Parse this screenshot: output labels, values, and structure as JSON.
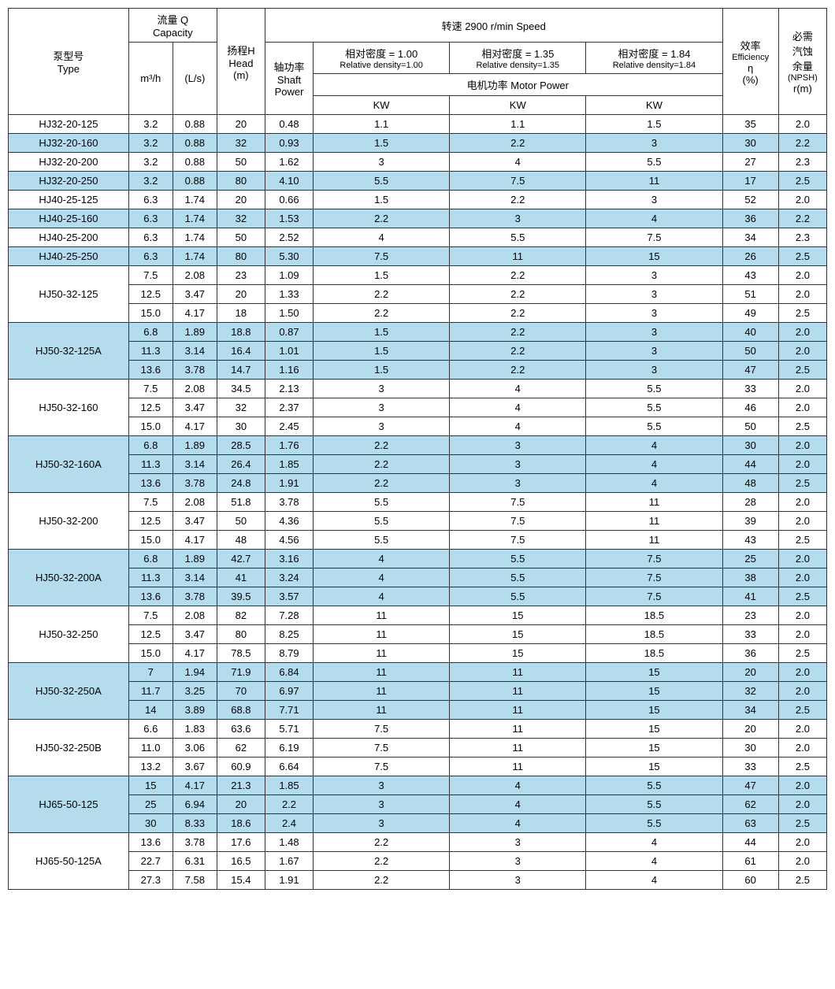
{
  "headers": {
    "type": "泵型号",
    "type_en": "Type",
    "capacity": "流量 Q",
    "capacity_en": "Capacity",
    "m3h": "m³/h",
    "ls": "(L/s)",
    "head": "扬程H",
    "head_en": "Head",
    "head_unit": "(m)",
    "speed": "转速  2900 r/min Speed",
    "shaft": "轴功率",
    "shaft_en": "Shaft",
    "shaft_en2": "Power",
    "d100": "相对密度 = 1.00",
    "d100_en": "Relative density=1.00",
    "d135": "相对密度 = 1.35",
    "d135_en": "Relative density=1.35",
    "d184": "相对密度 = 1.84",
    "d184_en": "Relative density=1.84",
    "motor": "电机功率   Motor Power",
    "kw": "KW",
    "eff": "效率",
    "eff_en": "Efficiency",
    "eff_sym": "η",
    "eff_unit": "(%)",
    "npsh": "必需",
    "npsh2": "汽蚀",
    "npsh3": "余量",
    "npsh_en": "(NPSH)",
    "npsh_unit": "r(m)"
  },
  "colors": {
    "alt_bg": "#b5dcec",
    "border": "#333333",
    "text": "#000000"
  },
  "groups": [
    {
      "type": "HJ32-20-125",
      "alt": false,
      "rows": [
        {
          "m3h": "3.2",
          "ls": "0.88",
          "head": "20",
          "shaft": "0.48",
          "kw1": "1.1",
          "kw2": "1.1",
          "kw3": "1.5",
          "eff": "35",
          "npsh": "2.0"
        }
      ]
    },
    {
      "type": "HJ32-20-160",
      "alt": true,
      "rows": [
        {
          "m3h": "3.2",
          "ls": "0.88",
          "head": "32",
          "shaft": "0.93",
          "kw1": "1.5",
          "kw2": "2.2",
          "kw3": "3",
          "eff": "30",
          "npsh": "2.2"
        }
      ]
    },
    {
      "type": "HJ32-20-200",
      "alt": false,
      "rows": [
        {
          "m3h": "3.2",
          "ls": "0.88",
          "head": "50",
          "shaft": "1.62",
          "kw1": "3",
          "kw2": "4",
          "kw3": "5.5",
          "eff": "27",
          "npsh": "2.3"
        }
      ]
    },
    {
      "type": "HJ32-20-250",
      "alt": true,
      "rows": [
        {
          "m3h": "3.2",
          "ls": "0.88",
          "head": "80",
          "shaft": "4.10",
          "kw1": "5.5",
          "kw2": "7.5",
          "kw3": "11",
          "eff": "17",
          "npsh": "2.5"
        }
      ]
    },
    {
      "type": "HJ40-25-125",
      "alt": false,
      "rows": [
        {
          "m3h": "6.3",
          "ls": "1.74",
          "head": "20",
          "shaft": "0.66",
          "kw1": "1.5",
          "kw2": "2.2",
          "kw3": "3",
          "eff": "52",
          "npsh": "2.0"
        }
      ]
    },
    {
      "type": "HJ40-25-160",
      "alt": true,
      "rows": [
        {
          "m3h": "6.3",
          "ls": "1.74",
          "head": "32",
          "shaft": "1.53",
          "kw1": "2.2",
          "kw2": "3",
          "kw3": "4",
          "eff": "36",
          "npsh": "2.2"
        }
      ]
    },
    {
      "type": "HJ40-25-200",
      "alt": false,
      "rows": [
        {
          "m3h": "6.3",
          "ls": "1.74",
          "head": "50",
          "shaft": "2.52",
          "kw1": "4",
          "kw2": "5.5",
          "kw3": "7.5",
          "eff": "34",
          "npsh": "2.3"
        }
      ]
    },
    {
      "type": "HJ40-25-250",
      "alt": true,
      "rows": [
        {
          "m3h": "6.3",
          "ls": "1.74",
          "head": "80",
          "shaft": "5.30",
          "kw1": "7.5",
          "kw2": "11",
          "kw3": "15",
          "eff": "26",
          "npsh": "2.5"
        }
      ]
    },
    {
      "type": "HJ50-32-125",
      "alt": false,
      "rows": [
        {
          "m3h": "7.5",
          "ls": "2.08",
          "head": "23",
          "shaft": "1.09",
          "kw1": "1.5",
          "kw2": "2.2",
          "kw3": "3",
          "eff": "43",
          "npsh": "2.0"
        },
        {
          "m3h": "12.5",
          "ls": "3.47",
          "head": "20",
          "shaft": "1.33",
          "kw1": "2.2",
          "kw2": "2.2",
          "kw3": "3",
          "eff": "51",
          "npsh": "2.0"
        },
        {
          "m3h": "15.0",
          "ls": "4.17",
          "head": "18",
          "shaft": "1.50",
          "kw1": "2.2",
          "kw2": "2.2",
          "kw3": "3",
          "eff": "49",
          "npsh": "2.5"
        }
      ]
    },
    {
      "type": "HJ50-32-125A",
      "alt": true,
      "rows": [
        {
          "m3h": "6.8",
          "ls": "1.89",
          "head": "18.8",
          "shaft": "0.87",
          "kw1": "1.5",
          "kw2": "2.2",
          "kw3": "3",
          "eff": "40",
          "npsh": "2.0"
        },
        {
          "m3h": "11.3",
          "ls": "3.14",
          "head": "16.4",
          "shaft": "1.01",
          "kw1": "1.5",
          "kw2": "2.2",
          "kw3": "3",
          "eff": "50",
          "npsh": "2.0"
        },
        {
          "m3h": "13.6",
          "ls": "3.78",
          "head": "14.7",
          "shaft": "1.16",
          "kw1": "1.5",
          "kw2": "2.2",
          "kw3": "3",
          "eff": "47",
          "npsh": "2.5"
        }
      ]
    },
    {
      "type": "HJ50-32-160",
      "alt": false,
      "rows": [
        {
          "m3h": "7.5",
          "ls": "2.08",
          "head": "34.5",
          "shaft": "2.13",
          "kw1": "3",
          "kw2": "4",
          "kw3": "5.5",
          "eff": "33",
          "npsh": "2.0"
        },
        {
          "m3h": "12.5",
          "ls": "3.47",
          "head": "32",
          "shaft": "2.37",
          "kw1": "3",
          "kw2": "4",
          "kw3": "5.5",
          "eff": "46",
          "npsh": "2.0"
        },
        {
          "m3h": "15.0",
          "ls": "4.17",
          "head": "30",
          "shaft": "2.45",
          "kw1": "3",
          "kw2": "4",
          "kw3": "5.5",
          "eff": "50",
          "npsh": "2.5"
        }
      ]
    },
    {
      "type": "HJ50-32-160A",
      "alt": true,
      "rows": [
        {
          "m3h": "6.8",
          "ls": "1.89",
          "head": "28.5",
          "shaft": "1.76",
          "kw1": "2.2",
          "kw2": "3",
          "kw3": "4",
          "eff": "30",
          "npsh": "2.0"
        },
        {
          "m3h": "11.3",
          "ls": "3.14",
          "head": "26.4",
          "shaft": "1.85",
          "kw1": "2.2",
          "kw2": "3",
          "kw3": "4",
          "eff": "44",
          "npsh": "2.0"
        },
        {
          "m3h": "13.6",
          "ls": "3.78",
          "head": "24.8",
          "shaft": "1.91",
          "kw1": "2.2",
          "kw2": "3",
          "kw3": "4",
          "eff": "48",
          "npsh": "2.5"
        }
      ]
    },
    {
      "type": "HJ50-32-200",
      "alt": false,
      "rows": [
        {
          "m3h": "7.5",
          "ls": "2.08",
          "head": "51.8",
          "shaft": "3.78",
          "kw1": "5.5",
          "kw2": "7.5",
          "kw3": "11",
          "eff": "28",
          "npsh": "2.0"
        },
        {
          "m3h": "12.5",
          "ls": "3.47",
          "head": "50",
          "shaft": "4.36",
          "kw1": "5.5",
          "kw2": "7.5",
          "kw3": "11",
          "eff": "39",
          "npsh": "2.0"
        },
        {
          "m3h": "15.0",
          "ls": "4.17",
          "head": "48",
          "shaft": "4.56",
          "kw1": "5.5",
          "kw2": "7.5",
          "kw3": "11",
          "eff": "43",
          "npsh": "2.5"
        }
      ]
    },
    {
      "type": "HJ50-32-200A",
      "alt": true,
      "rows": [
        {
          "m3h": "6.8",
          "ls": "1.89",
          "head": "42.7",
          "shaft": "3.16",
          "kw1": "4",
          "kw2": "5.5",
          "kw3": "7.5",
          "eff": "25",
          "npsh": "2.0"
        },
        {
          "m3h": "11.3",
          "ls": "3.14",
          "head": "41",
          "shaft": "3.24",
          "kw1": "4",
          "kw2": "5.5",
          "kw3": "7.5",
          "eff": "38",
          "npsh": "2.0"
        },
        {
          "m3h": "13.6",
          "ls": "3.78",
          "head": "39.5",
          "shaft": "3.57",
          "kw1": "4",
          "kw2": "5.5",
          "kw3": "7.5",
          "eff": "41",
          "npsh": "2.5"
        }
      ]
    },
    {
      "type": "HJ50-32-250",
      "alt": false,
      "rows": [
        {
          "m3h": "7.5",
          "ls": "2.08",
          "head": "82",
          "shaft": "7.28",
          "kw1": "11",
          "kw2": "15",
          "kw3": "18.5",
          "eff": "23",
          "npsh": "2.0"
        },
        {
          "m3h": "12.5",
          "ls": "3.47",
          "head": "80",
          "shaft": "8.25",
          "kw1": "11",
          "kw2": "15",
          "kw3": "18.5",
          "eff": "33",
          "npsh": "2.0"
        },
        {
          "m3h": "15.0",
          "ls": "4.17",
          "head": "78.5",
          "shaft": "8.79",
          "kw1": "11",
          "kw2": "15",
          "kw3": "18.5",
          "eff": "36",
          "npsh": "2.5"
        }
      ]
    },
    {
      "type": "HJ50-32-250A",
      "alt": true,
      "rows": [
        {
          "m3h": "7",
          "ls": "1.94",
          "head": "71.9",
          "shaft": "6.84",
          "kw1": "11",
          "kw2": "11",
          "kw3": "15",
          "eff": "20",
          "npsh": "2.0"
        },
        {
          "m3h": "11.7",
          "ls": "3.25",
          "head": "70",
          "shaft": "6.97",
          "kw1": "11",
          "kw2": "11",
          "kw3": "15",
          "eff": "32",
          "npsh": "2.0"
        },
        {
          "m3h": "14",
          "ls": "3.89",
          "head": "68.8",
          "shaft": "7.71",
          "kw1": "11",
          "kw2": "11",
          "kw3": "15",
          "eff": "34",
          "npsh": "2.5"
        }
      ]
    },
    {
      "type": "HJ50-32-250B",
      "alt": false,
      "rows": [
        {
          "m3h": "6.6",
          "ls": "1.83",
          "head": "63.6",
          "shaft": "5.71",
          "kw1": "7.5",
          "kw2": "11",
          "kw3": "15",
          "eff": "20",
          "npsh": "2.0"
        },
        {
          "m3h": "11.0",
          "ls": "3.06",
          "head": "62",
          "shaft": "6.19",
          "kw1": "7.5",
          "kw2": "11",
          "kw3": "15",
          "eff": "30",
          "npsh": "2.0"
        },
        {
          "m3h": "13.2",
          "ls": "3.67",
          "head": "60.9",
          "shaft": "6.64",
          "kw1": "7.5",
          "kw2": "11",
          "kw3": "15",
          "eff": "33",
          "npsh": "2.5"
        }
      ]
    },
    {
      "type": "HJ65-50-125",
      "alt": true,
      "rows": [
        {
          "m3h": "15",
          "ls": "4.17",
          "head": "21.3",
          "shaft": "1.85",
          "kw1": "3",
          "kw2": "4",
          "kw3": "5.5",
          "eff": "47",
          "npsh": "2.0"
        },
        {
          "m3h": "25",
          "ls": "6.94",
          "head": "20",
          "shaft": "2.2",
          "kw1": "3",
          "kw2": "4",
          "kw3": "5.5",
          "eff": "62",
          "npsh": "2.0"
        },
        {
          "m3h": "30",
          "ls": "8.33",
          "head": "18.6",
          "shaft": "2.4",
          "kw1": "3",
          "kw2": "4",
          "kw3": "5.5",
          "eff": "63",
          "npsh": "2.5"
        }
      ]
    },
    {
      "type": "HJ65-50-125A",
      "alt": false,
      "rows": [
        {
          "m3h": "13.6",
          "ls": "3.78",
          "head": "17.6",
          "shaft": "1.48",
          "kw1": "2.2",
          "kw2": "3",
          "kw3": "4",
          "eff": "44",
          "npsh": "2.0"
        },
        {
          "m3h": "22.7",
          "ls": "6.31",
          "head": "16.5",
          "shaft": "1.67",
          "kw1": "2.2",
          "kw2": "3",
          "kw3": "4",
          "eff": "61",
          "npsh": "2.0"
        },
        {
          "m3h": "27.3",
          "ls": "7.58",
          "head": "15.4",
          "shaft": "1.91",
          "kw1": "2.2",
          "kw2": "3",
          "kw3": "4",
          "eff": "60",
          "npsh": "2.5"
        }
      ]
    }
  ]
}
